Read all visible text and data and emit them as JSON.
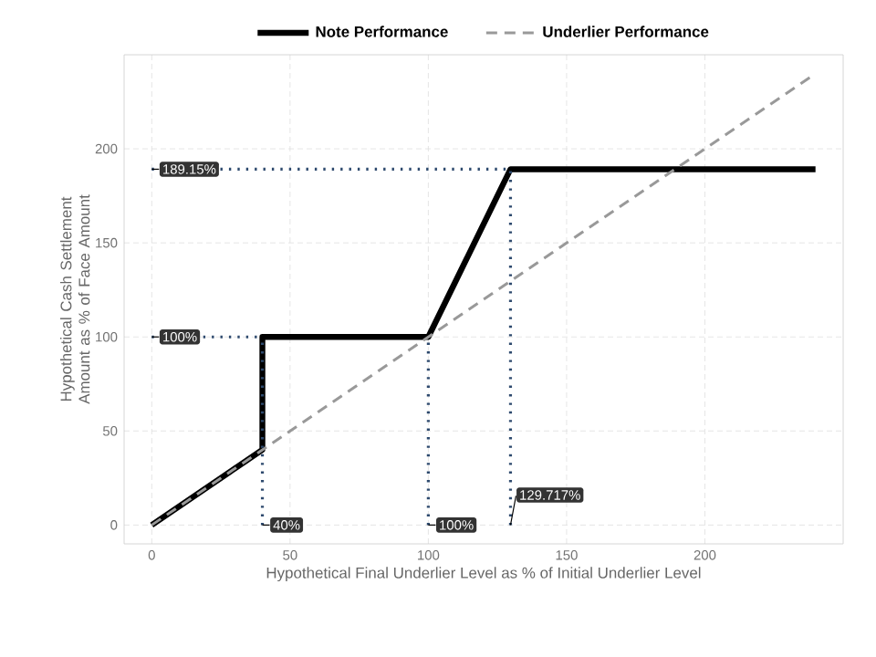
{
  "chart_data": {
    "type": "line",
    "xlabel": "Hypothetical Final Underlier Level as % of Initial Underlier Level",
    "ylabel": "Hypothetical Cash Settlement Amount as % of Face Amount",
    "xlim": [
      -10,
      250
    ],
    "ylim": [
      -10,
      250
    ],
    "xticks": [
      0,
      50,
      100,
      150,
      200
    ],
    "yticks": [
      0,
      50,
      100,
      150,
      200
    ],
    "grid": true,
    "legend": "top",
    "series": [
      {
        "name": "Note Performance",
        "color": "#000000",
        "line_style": "solid",
        "x": [
          0,
          40,
          40,
          100,
          129.717,
          240
        ],
        "values": [
          0,
          40,
          100,
          100,
          189.15,
          189.15
        ]
      },
      {
        "name": "Underlier Performance",
        "color": "#999999",
        "line_style": "dashed",
        "x": [
          0,
          240
        ],
        "values": [
          0,
          240
        ]
      },
      {
        "color": "#2e4a6e",
        "line_style": "dotted",
        "x": [
          0,
          129.717
        ],
        "values": [
          189.15,
          189.15
        ]
      },
      {
        "color": "#2e4a6e",
        "line_style": "dotted",
        "x": [
          0,
          40
        ],
        "values": [
          100,
          100
        ]
      },
      {
        "color": "#2e4a6e",
        "line_style": "dotted",
        "x": [
          40,
          40
        ],
        "values": [
          0,
          100
        ]
      },
      {
        "color": "#2e4a6e",
        "line_style": "dotted",
        "x": [
          100,
          100
        ],
        "values": [
          0,
          100
        ]
      },
      {
        "color": "#2e4a6e",
        "line_style": "dotted",
        "x": [
          129.717,
          129.717
        ],
        "values": [
          0,
          189.15
        ]
      }
    ],
    "annotations": [
      {
        "text": "189.15%",
        "x": 0,
        "y": 189.15
      },
      {
        "text": "100%",
        "x": 0,
        "y": 100
      },
      {
        "text": "40%",
        "x": 40,
        "y": 0
      },
      {
        "text": "100%",
        "x": 100,
        "y": 0
      },
      {
        "text": "129.717%",
        "x": 129.717,
        "y": 0
      }
    ]
  }
}
